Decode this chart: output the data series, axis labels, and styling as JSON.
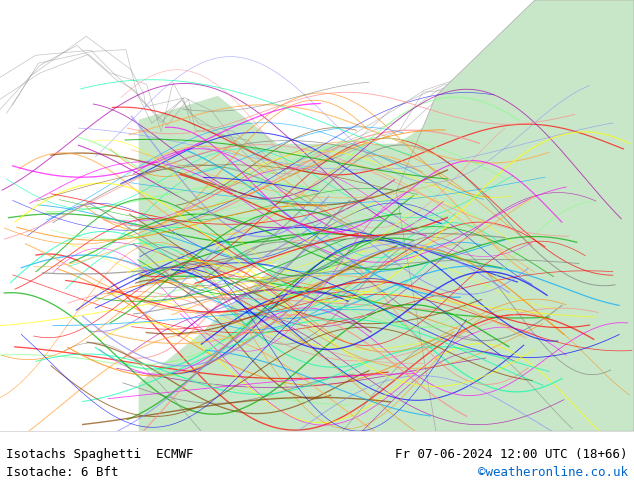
{
  "title_left": "Isotachs Spaghetti  ECMWF",
  "title_right": "Fr 07-06-2024 12:00 UTC (18+66)",
  "subtitle_left": "Isotache: 6 Bft",
  "subtitle_right": "©weatheronline.co.uk",
  "subtitle_right_color": "#0066cc",
  "bg_color": "#f0f0f0",
  "land_color": "#c8e6c8",
  "sea_color": "#e8e8e8",
  "bottom_bar_color": "#ffffff",
  "text_color": "#000000",
  "fig_width": 6.34,
  "fig_height": 4.9,
  "bottom_bar_height": 0.12,
  "font_size_title": 9,
  "font_size_subtitle": 9,
  "spaghetti_colors": [
    "#808080",
    "#ff0000",
    "#00aa00",
    "#0000ff",
    "#ff8800",
    "#aa00aa",
    "#00aaff",
    "#ffff00",
    "#ff00ff",
    "#00ffaa",
    "#884400",
    "#ff8888",
    "#88ff88",
    "#8888ff",
    "#ffaa44"
  ]
}
